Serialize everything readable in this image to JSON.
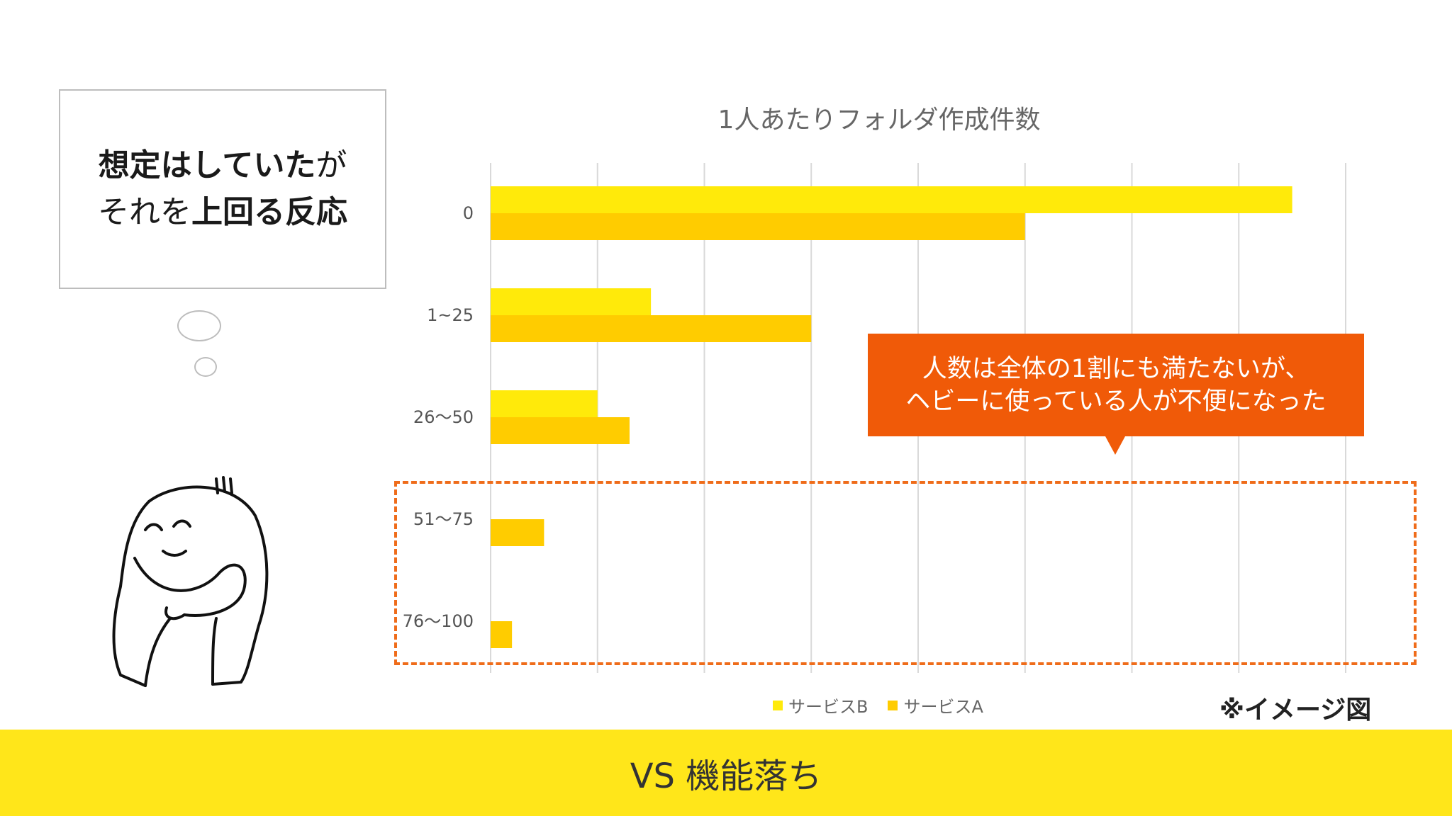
{
  "thought": {
    "line1_bold": "想定はしていた",
    "line1_tail": "が",
    "line2_head": "それを",
    "line2_bold": "上回る反応"
  },
  "callout": {
    "line1": "人数は全体の1割にも満たないが、",
    "line2": "ヘビーに使っている人が不便になった"
  },
  "image_note": "※イメージ図",
  "footer": {
    "text": "VS 機能落ち"
  },
  "colors": {
    "service_b": "#ffea0a",
    "service_a": "#ffcc00",
    "callout": "#f05a08",
    "footer": "#ffe61a"
  },
  "chart_data": {
    "type": "bar",
    "orientation": "horizontal",
    "title": "1人あたりフォルダ作成件数",
    "categories": [
      "0",
      "1~25",
      "26〜50",
      "51〜75",
      "76〜100"
    ],
    "series": [
      {
        "name": "サービスB",
        "values": [
          75,
          15,
          10,
          0,
          0
        ]
      },
      {
        "name": "サービスA",
        "values": [
          50,
          30,
          13,
          5,
          2
        ]
      }
    ],
    "xlim": [
      0,
      80
    ],
    "grid": true,
    "legend_position": "bottom"
  }
}
